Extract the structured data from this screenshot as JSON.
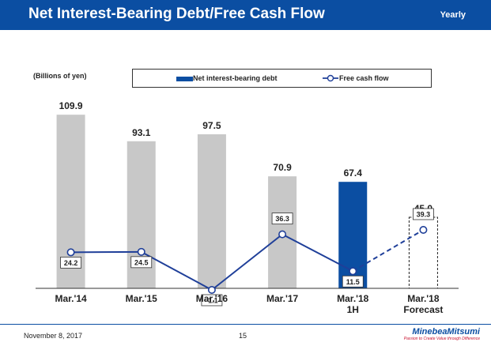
{
  "header": {
    "title": "Net Interest-Bearing Debt/Free Cash Flow",
    "tag": "Yearly"
  },
  "units_label": "(Billions of yen)",
  "colors": {
    "accent": "#0b4ea2",
    "bar_gray": "#c8c8c8",
    "line": "#1f3f99",
    "brand_red": "#c8102e"
  },
  "chart_data": {
    "type": "bar",
    "categories": [
      "Mar.'14",
      "Mar.'15",
      "Mar.'16",
      "Mar.'17",
      "Mar.'18 1H",
      "Mar.'18 Forecast"
    ],
    "category_lines": [
      [
        "Mar.'14"
      ],
      [
        "Mar.'15"
      ],
      [
        "Mar.'16"
      ],
      [
        "Mar.'17"
      ],
      [
        "Mar.'18",
        "1H"
      ],
      [
        "Mar.'18",
        "Forecast"
      ]
    ],
    "series": [
      {
        "name": "Net interest-bearing debt",
        "type": "bar",
        "values": [
          109.9,
          93.1,
          97.5,
          70.9,
          67.4,
          45.0
        ],
        "labels": [
          "109.9",
          "93.1",
          "97.5",
          "70.9",
          "67.4",
          "45.0"
        ],
        "styles": [
          "gray",
          "gray",
          "gray",
          "gray",
          "blue",
          "dashed"
        ]
      },
      {
        "name": "Free cash flow",
        "type": "line",
        "values": [
          24.2,
          24.5,
          -1.1,
          36.3,
          11.5,
          39.3
        ],
        "labels": [
          "24.2",
          "24.5",
          "-1.1",
          "36.3",
          "11.5",
          "39.3"
        ],
        "styles": [
          "solid",
          "solid",
          "solid",
          "solid",
          "solid",
          "dashed"
        ]
      }
    ],
    "bar_ylim": [
      0,
      120
    ],
    "line_ylim": [
      -1.1,
      39.3
    ],
    "legend": "top"
  },
  "footer": {
    "date": "November 8, 2017",
    "page": "15",
    "brand_name": "MinebeaMitsumi",
    "brand_tagline": "Passion to Create Value through Difference"
  }
}
